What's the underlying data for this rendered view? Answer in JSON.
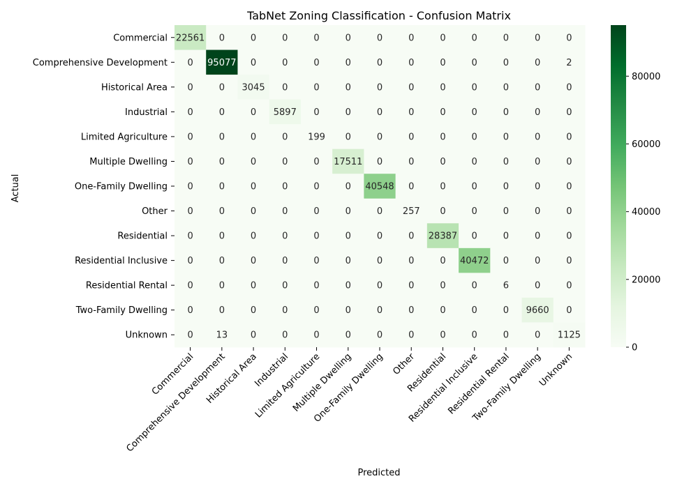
{
  "chart_data": {
    "type": "heatmap",
    "title": "TabNet Zoning Classification - Confusion Matrix",
    "xlabel": "Predicted",
    "ylabel": "Actual",
    "labels": [
      "Commercial",
      "Comprehensive Development",
      "Historical Area",
      "Industrial",
      "Limited Agriculture",
      "Multiple Dwelling",
      "One-Family Dwelling",
      "Other",
      "Residential",
      "Residential Inclusive",
      "Residential Rental",
      "Two-Family Dwelling",
      "Unknown"
    ],
    "matrix": [
      [
        22561,
        0,
        0,
        0,
        0,
        0,
        0,
        0,
        0,
        0,
        0,
        0,
        0
      ],
      [
        0,
        95077,
        0,
        0,
        0,
        0,
        0,
        0,
        0,
        0,
        0,
        0,
        2
      ],
      [
        0,
        0,
        3045,
        0,
        0,
        0,
        0,
        0,
        0,
        0,
        0,
        0,
        0
      ],
      [
        0,
        0,
        0,
        5897,
        0,
        0,
        0,
        0,
        0,
        0,
        0,
        0,
        0
      ],
      [
        0,
        0,
        0,
        0,
        199,
        0,
        0,
        0,
        0,
        0,
        0,
        0,
        0
      ],
      [
        0,
        0,
        0,
        0,
        0,
        17511,
        0,
        0,
        0,
        0,
        0,
        0,
        0
      ],
      [
        0,
        0,
        0,
        0,
        0,
        0,
        40548,
        0,
        0,
        0,
        0,
        0,
        0
      ],
      [
        0,
        0,
        0,
        0,
        0,
        0,
        0,
        257,
        0,
        0,
        0,
        0,
        0
      ],
      [
        0,
        0,
        0,
        0,
        0,
        0,
        0,
        0,
        28387,
        0,
        0,
        0,
        0
      ],
      [
        0,
        0,
        0,
        0,
        0,
        0,
        0,
        0,
        0,
        40472,
        0,
        0,
        0
      ],
      [
        0,
        0,
        0,
        0,
        0,
        0,
        0,
        0,
        0,
        0,
        6,
        0,
        0
      ],
      [
        0,
        0,
        0,
        0,
        0,
        0,
        0,
        0,
        0,
        0,
        0,
        9660,
        0
      ],
      [
        0,
        13,
        0,
        0,
        0,
        0,
        0,
        0,
        0,
        0,
        0,
        0,
        1125
      ]
    ],
    "colorbar": {
      "colormap": "Greens",
      "vmin": 0,
      "vmax": 95077,
      "ticks": [
        0,
        20000,
        40000,
        60000,
        80000
      ]
    }
  }
}
